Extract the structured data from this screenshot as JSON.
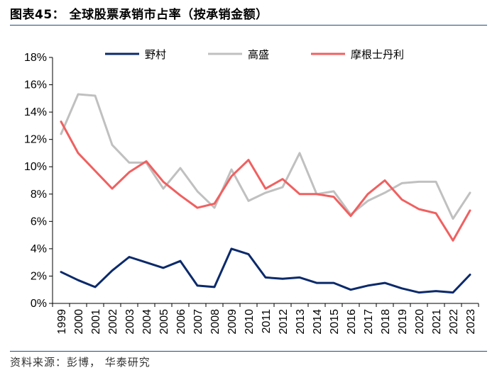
{
  "header": {
    "title": "图表45： 全球股票承销市占率（按承销金额）"
  },
  "footer": {
    "source": "资料来源：彭博， 华泰研究"
  },
  "chart_data": {
    "type": "line",
    "title": "",
    "xlabel": "",
    "ylabel": "",
    "x": [
      "1999",
      "2000",
      "2001",
      "2002",
      "2003",
      "2004",
      "2005",
      "2006",
      "2007",
      "2008",
      "2009",
      "2010",
      "2011",
      "2012",
      "2013",
      "2014",
      "2015",
      "2016",
      "2017",
      "2018",
      "2019",
      "2020",
      "2021",
      "2022",
      "2023"
    ],
    "ylim": [
      0,
      18
    ],
    "yticks": [
      0,
      2,
      4,
      6,
      8,
      10,
      12,
      14,
      16,
      18
    ],
    "ytick_labels": [
      "0%",
      "2%",
      "4%",
      "6%",
      "8%",
      "10%",
      "12%",
      "14%",
      "16%",
      "18%"
    ],
    "grid": false,
    "legend_position": "top",
    "series": [
      {
        "name": "野村",
        "color": "#0b2a6b",
        "values": [
          2.3,
          1.7,
          1.2,
          2.4,
          3.4,
          3.0,
          2.6,
          3.1,
          1.3,
          1.2,
          4.0,
          3.6,
          1.9,
          1.8,
          1.9,
          1.5,
          1.5,
          1.0,
          1.3,
          1.5,
          1.1,
          0.8,
          0.9,
          0.8,
          2.1
        ]
      },
      {
        "name": "高盛",
        "color": "#c0c0c0",
        "values": [
          12.4,
          15.3,
          15.2,
          11.6,
          10.3,
          10.3,
          8.4,
          9.9,
          8.2,
          7.0,
          9.8,
          7.5,
          8.1,
          8.5,
          11.0,
          8.0,
          8.2,
          6.5,
          7.5,
          8.1,
          8.8,
          8.9,
          8.9,
          6.2,
          8.1
        ]
      },
      {
        "name": "摩根士丹利",
        "color": "#f06060",
        "values": [
          13.3,
          11.0,
          9.7,
          8.4,
          9.6,
          10.4,
          8.9,
          7.9,
          7.0,
          7.3,
          9.3,
          10.5,
          8.4,
          9.1,
          8.0,
          8.0,
          7.8,
          6.4,
          8.0,
          9.0,
          7.6,
          6.9,
          6.6,
          4.6,
          6.8
        ]
      }
    ]
  }
}
